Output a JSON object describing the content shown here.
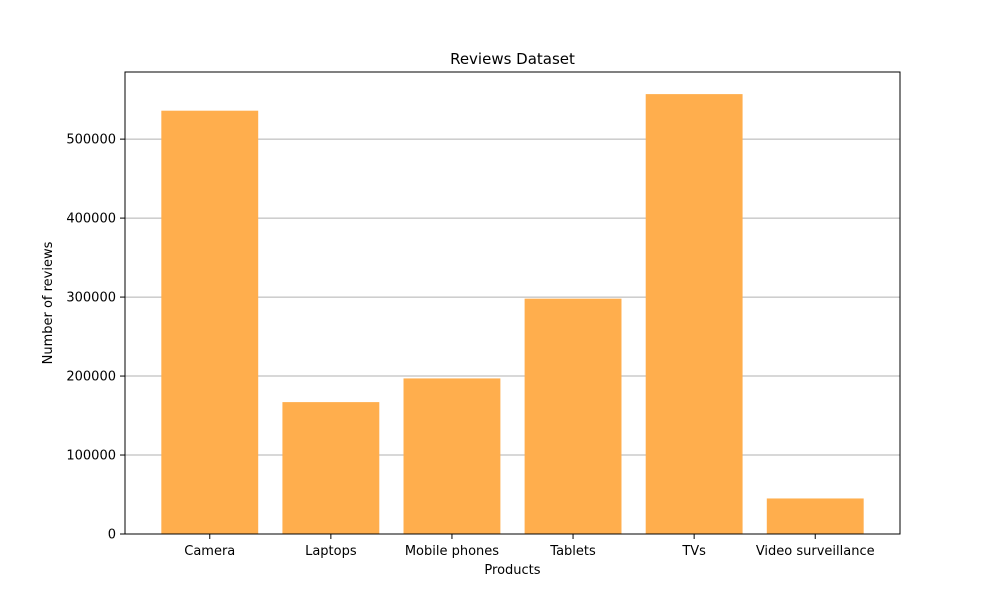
{
  "chart_data": {
    "type": "bar",
    "title": "Reviews Dataset",
    "xlabel": "Products",
    "ylabel": "Number of reviews",
    "categories": [
      "Camera",
      "Laptops",
      "Mobile phones",
      "Tablets",
      "TVs",
      "Video surveillance"
    ],
    "values": [
      536000,
      167000,
      197000,
      298000,
      557000,
      45000
    ],
    "ylim": [
      0,
      585000
    ],
    "yticks": [
      0,
      100000,
      200000,
      300000,
      400000,
      500000
    ],
    "ytick_labels": [
      "0",
      "100000",
      "200000",
      "300000",
      "400000",
      "500000"
    ],
    "grid": "horizontal",
    "bar_color": "#ffae4d",
    "grid_color": "#b0b0b0",
    "axes_color": "#000000"
  }
}
